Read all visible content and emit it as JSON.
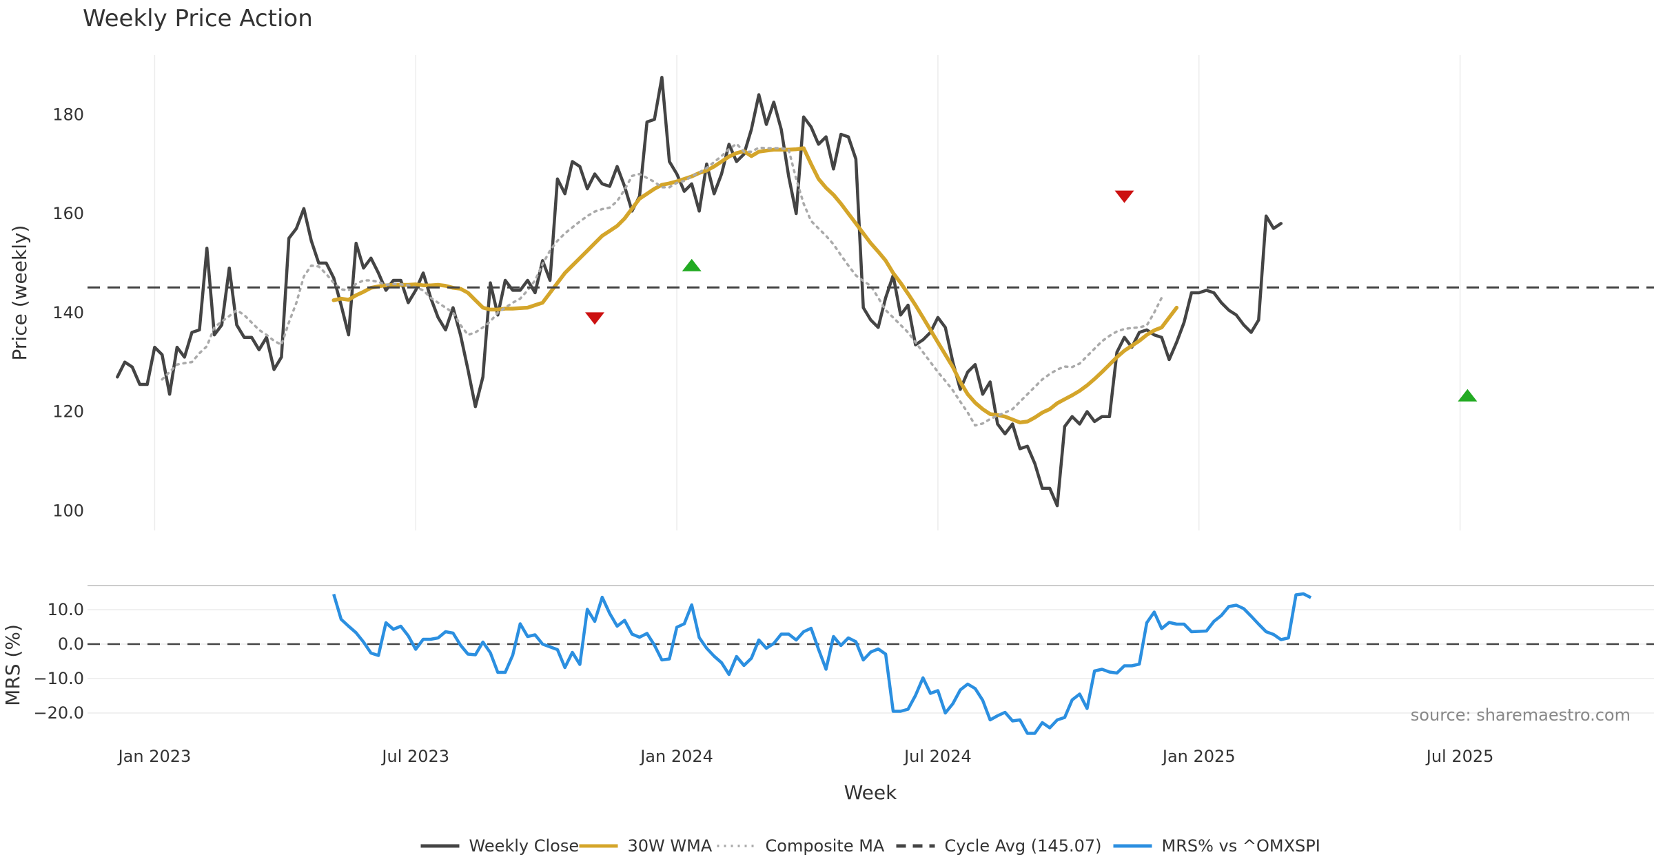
{
  "chart_data": {
    "type": "line",
    "title": "Weekly Price Action",
    "xlabel": "Week",
    "source": "source: sharemaestro.com",
    "x_ticks": [
      "Jan 2023",
      "Jul 2023",
      "Jan 2024",
      "Jul 2024",
      "Jan 2025",
      "Jul 2025"
    ],
    "x_tick_weeks": [
      5,
      40,
      75,
      110,
      145,
      180
    ],
    "x_range_weeks": [
      -4,
      206
    ],
    "price_panel": {
      "ylabel": "Price (weekly)",
      "yticks": [
        100,
        120,
        140,
        160,
        180
      ],
      "ylim": [
        96,
        192
      ],
      "grid": true,
      "series": [
        {
          "name": "Weekly Close",
          "key": "close",
          "color": "#444444",
          "style": "solid",
          "start_week": 0,
          "values": [
            127,
            130,
            129,
            125.5,
            125.5,
            133,
            131.5,
            123.5,
            133,
            131,
            136,
            136.5,
            153,
            135.5,
            137.5,
            149,
            137.5,
            135,
            135,
            132.5,
            135,
            128.5,
            131,
            155,
            157,
            161,
            154.5,
            150,
            150,
            147,
            141.5,
            135.5,
            154,
            149,
            151,
            148,
            144.5,
            146.5,
            146.5,
            142,
            144.5,
            148,
            143,
            139,
            136.5,
            141,
            135.5,
            128.5,
            121,
            127,
            146,
            139.5,
            146.5,
            144.5,
            144.5,
            146.5,
            144,
            150.5,
            146.5,
            167,
            164,
            170.5,
            169.5,
            165,
            168,
            166,
            165.5,
            169.5,
            165.5,
            160.5,
            163.5,
            178.5,
            179,
            187.5,
            170.5,
            168,
            164.5,
            166,
            160.5,
            170,
            164,
            168,
            174,
            170.5,
            172,
            177,
            184,
            178,
            182.5,
            177,
            167.5,
            160,
            179.5,
            177.5,
            174,
            175.5,
            169,
            176,
            175.5,
            171,
            141,
            138.5,
            137,
            143,
            147.5,
            139.5,
            141.5,
            133.5,
            134.5,
            136,
            139,
            137,
            130,
            124.5,
            128,
            129.5,
            123.5,
            126,
            117.5,
            115.5,
            117.5,
            112.5,
            113,
            109.5,
            104.5,
            104.5,
            101,
            117,
            119,
            117.5,
            120,
            118,
            119,
            119,
            132,
            135,
            133,
            136,
            136.5,
            135.5,
            135,
            130.5,
            134,
            138,
            144,
            144,
            144.5,
            144,
            142,
            140.5,
            139.5,
            137.5,
            136,
            138.5,
            159.5,
            157,
            158
          ]
        },
        {
          "name": "30W WMA",
          "key": "wma",
          "color": "#d4a52a",
          "style": "solid",
          "start_week": 29,
          "values": [
            142.5,
            142.8,
            142.6,
            143.5,
            144.2,
            145,
            145.3,
            145.5,
            145.6,
            145.6,
            145.6,
            145.7,
            145.5,
            145.5,
            145.6,
            145.4,
            145,
            144.8,
            144,
            142.5,
            141,
            140.6,
            140.6,
            140.8,
            140.8,
            140.9,
            141,
            141.5,
            142,
            144,
            146,
            148,
            149.5,
            151,
            152.5,
            154,
            155.5,
            156.5,
            157.5,
            159,
            161,
            163,
            164,
            165,
            165.8,
            166.1,
            166.5,
            167,
            167.5,
            168.2,
            168.7,
            169.5,
            170.5,
            171.5,
            172.2,
            172.6,
            171.6,
            172.5,
            172.7,
            172.9,
            172.9,
            172.9,
            173,
            173.2,
            170,
            167,
            165.2,
            163.8,
            162,
            160,
            158,
            156,
            154,
            152.3,
            150.5,
            148,
            146,
            143.8,
            141.5,
            139,
            136.5,
            134,
            131.5,
            129,
            126,
            123.5,
            121.8,
            120.5,
            119.5,
            119.3,
            119,
            118.4,
            117.8,
            118,
            118.8,
            119.8,
            120.5,
            121.7,
            122.5,
            123.3,
            124.2,
            125.3,
            126.6,
            128,
            129.5,
            131,
            132.3,
            133.3,
            134.3,
            135.5,
            136.4,
            137,
            139,
            141
          ]
        },
        {
          "name": "Composite MA",
          "key": "comp",
          "color": "#aaaaaa",
          "style": "dotted",
          "start_week": 6,
          "values": [
            126.5,
            128,
            129.5,
            129.8,
            130,
            131.8,
            133.2,
            137,
            138.2,
            139.3,
            140.5,
            139.5,
            138,
            136.5,
            135.5,
            134.3,
            133.5,
            138,
            142,
            147.3,
            149.5,
            149.3,
            147.8,
            146,
            144.7,
            144.5,
            145.8,
            146.5,
            146.5,
            146.2,
            145.6,
            145.8,
            145.7,
            145.5,
            145.1,
            144.5,
            143,
            142,
            141,
            140,
            137.5,
            135.5,
            136,
            137,
            138.2,
            140,
            141,
            142,
            142.8,
            144.5,
            146.5,
            149.8,
            152.5,
            154.5,
            156,
            157.2,
            158.4,
            159.5,
            160.4,
            160.9,
            161.2,
            162.5,
            164.8,
            167.6,
            168,
            167.2,
            166.4,
            165.3,
            165.3,
            166.2,
            166.6,
            167.5,
            168.3,
            169.2,
            170.4,
            171.6,
            173,
            174.1,
            172.5,
            172.5,
            173.3,
            173.2,
            173.2,
            173.2,
            172.9,
            167,
            162,
            158.5,
            157,
            155.5,
            153.8,
            151.6,
            149.5,
            147.5,
            146.4,
            145.4,
            143,
            140.5,
            139,
            137.5,
            136,
            134,
            132,
            130,
            128,
            126.2,
            124.3,
            122,
            119.8,
            117.2,
            117.6,
            118.5,
            119.2,
            119.8,
            120.5,
            122,
            123.5,
            125,
            126.5,
            127.6,
            128.5,
            129.1,
            129,
            129.7,
            131.2,
            132.7,
            134.2,
            135.3,
            136.2,
            136.7,
            136.9,
            137,
            137.4,
            140,
            143
          ]
        },
        {
          "name": "Cycle Avg (145.07)",
          "key": "cycle",
          "color": "#444444",
          "style": "dashed",
          "value": 145.07
        }
      ],
      "signals": [
        {
          "type": "sell",
          "week": 64,
          "y": 138.8,
          "color": "#cc1111"
        },
        {
          "type": "buy",
          "week": 77,
          "y": 149.6,
          "color": "#22aa22"
        },
        {
          "type": "sell",
          "week": 135,
          "y": 163.4,
          "color": "#cc1111"
        },
        {
          "type": "buy",
          "week": 181,
          "y": 123.3,
          "color": "#22aa22"
        }
      ]
    },
    "mrs_panel": {
      "ylabel": "MRS (%)",
      "yticks": [
        -20,
        -10,
        0,
        10
      ],
      "ytick_labels": [
        "−20.0",
        "−10.0",
        "0.0",
        "10.0"
      ],
      "ylim": [
        -26,
        17
      ],
      "zero_line": 0,
      "series": {
        "name": "MRS% vs ^OMXSPI",
        "key": "mrs",
        "color": "#2b8fe0",
        "start_week": 29,
        "values": [
          14.5,
          7.2,
          5.2,
          3.3,
          0.6,
          -2.6,
          -3.3,
          6.2,
          4.3,
          5.2,
          2.4,
          -1.5,
          1.4,
          1.4,
          1.8,
          3.6,
          3.2,
          -0.3,
          -2.9,
          -3.1,
          0.6,
          -2.5,
          -8.2,
          -8.2,
          -3.2,
          5.9,
          2.2,
          2.7,
          0,
          -0.8,
          -1.6,
          -6.8,
          -2.4,
          -5.9,
          10.1,
          6.6,
          13.6,
          8.9,
          5.2,
          6.9,
          2.9,
          2,
          3.1,
          -0.3,
          -4.6,
          -4.3,
          4.9,
          5.9,
          11.4,
          1.9,
          -1.2,
          -3.5,
          -5.4,
          -8.8,
          -3.6,
          -6.2,
          -4.1,
          1.2,
          -1.2,
          0.2,
          2.9,
          2.9,
          1.2,
          3.6,
          4.6,
          -1.5,
          -7.3,
          2.2,
          -0.4,
          1.8,
          0.7,
          -4.6,
          -2.3,
          -1.4,
          -2.9,
          -19.5,
          -19.5,
          -18.9,
          -14.9,
          -9.8,
          -14.3,
          -13.5,
          -20,
          -17.3,
          -13.3,
          -11.6,
          -12.9,
          -16.3,
          -22,
          -20.8,
          -19.8,
          -22.3,
          -22,
          -25.9,
          -25.9,
          -22.8,
          -24.3,
          -22,
          -21.3,
          -16.2,
          -14.5,
          -18.7,
          -7.8,
          -7.3,
          -8.1,
          -8.4,
          -6.3,
          -6.3,
          -5.8,
          6.2,
          9.3,
          4.5,
          6.3,
          5.8,
          5.8,
          3.6,
          3.7,
          3.8,
          6.6,
          8.3,
          10.9,
          11.3,
          10.3,
          8.1,
          5.8,
          3.6,
          2.8,
          1.3,
          1.8,
          14.3,
          14.6,
          13.5
        ]
      }
    },
    "legend": {
      "placement": "bottom-center",
      "entries": [
        {
          "label": "Weekly Close",
          "key": "close"
        },
        {
          "label": "30W WMA",
          "key": "wma"
        },
        {
          "label": "Composite MA",
          "key": "comp"
        },
        {
          "label": "Cycle Avg (145.07)",
          "key": "cycle"
        },
        {
          "label": "MRS% vs ^OMXSPI",
          "key": "mrs"
        }
      ]
    }
  }
}
